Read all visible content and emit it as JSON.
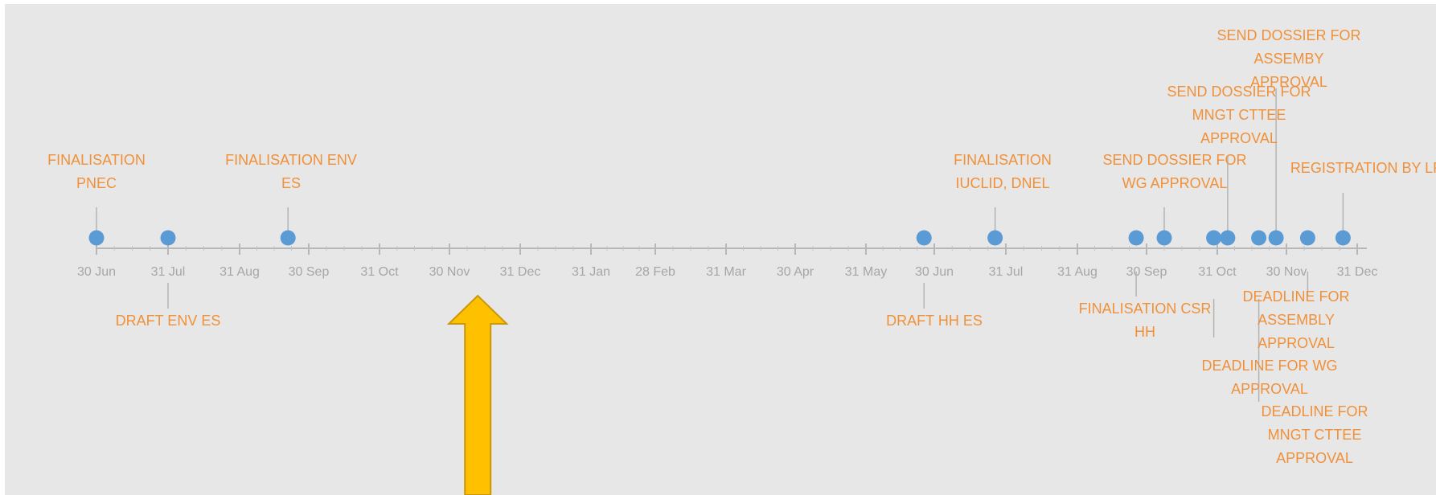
{
  "chart_data": {
    "type": "timeline",
    "title": "",
    "axis": {
      "ticks": [
        "30 Jun",
        "31 Jul",
        "31 Aug",
        "30 Sep",
        "31 Oct",
        "30 Nov",
        "31 Dec",
        "31 Jan",
        "28 Feb",
        "31 Mar",
        "30 Apr",
        "31 May",
        "30 Jun",
        "31 Jul",
        "31 Aug",
        "30 Sep",
        "31 Oct",
        "30 Nov",
        "31 Dec"
      ]
    },
    "events": [
      {
        "label": [
          "FINALISATION",
          "PNEC"
        ],
        "month": 0.0,
        "side": "above"
      },
      {
        "label": [
          "DRAFT ENV ES"
        ],
        "month": 1.0,
        "side": "below"
      },
      {
        "label": [
          "FINALISATION ENV",
          "ES"
        ],
        "month": 2.7,
        "side": "above"
      },
      {
        "label": [
          "DRAFT HH ES"
        ],
        "month": 11.85,
        "side": "below"
      },
      {
        "label": [
          "FINALISATION",
          "IUCLID, DNEL"
        ],
        "month": 12.85,
        "side": "above"
      },
      {
        "label": [
          "FINALISATION CSR",
          "HH"
        ],
        "month": 14.85,
        "side": "below"
      },
      {
        "label": [
          "SEND DOSSIER FOR",
          "WG APPROVAL"
        ],
        "month": 15.25,
        "side": "above"
      },
      {
        "label": [
          "DEADLINE FOR WG",
          "APPROVAL"
        ],
        "month": 15.95,
        "side": "below"
      },
      {
        "label": [
          "SEND DOSSIER FOR",
          "MNGT CTTEE",
          "APPROVAL"
        ],
        "month": 16.15,
        "side": "above"
      },
      {
        "label": [
          "DEADLINE FOR",
          "MNGT CTTEE",
          "APPROVAL"
        ],
        "month": 16.6,
        "side": "below"
      },
      {
        "label": [
          "SEND DOSSIER FOR",
          "ASSEMBY",
          "APPROVAL"
        ],
        "month": 16.85,
        "side": "above"
      },
      {
        "label": [
          "DEADLINE FOR",
          "ASSEMBLY",
          "APPROVAL"
        ],
        "month": 17.3,
        "side": "below"
      },
      {
        "label": [
          "REGISTRATION BY LR"
        ],
        "month": 17.8,
        "side": "above"
      }
    ],
    "annotation": {
      "type": "arrow",
      "direction": "up",
      "color": "#ffc000",
      "month": 5.4
    }
  },
  "colors": {
    "background": "#e7e7e7",
    "axis": "#b7b7b7",
    "tick_label": "#a6a6a6",
    "marker": "#5b9bd5",
    "event_label": "#f0913a",
    "arrow_fill": "#ffc000"
  }
}
